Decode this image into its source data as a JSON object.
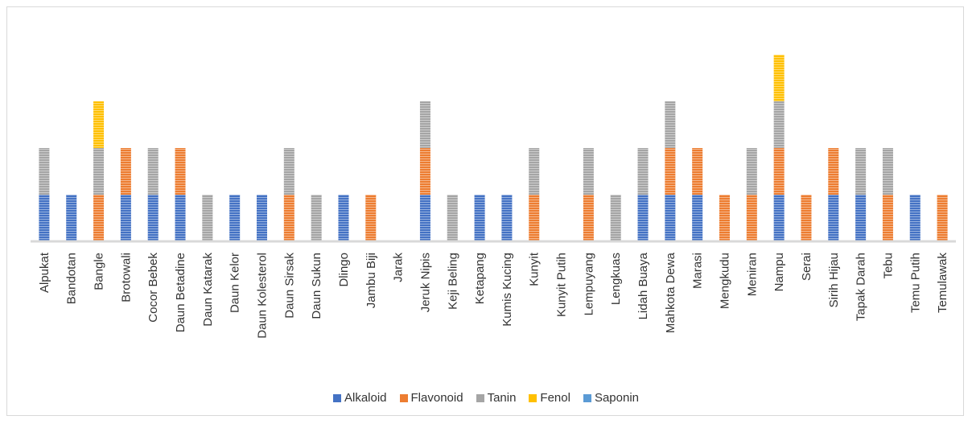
{
  "chart_data": {
    "type": "bar",
    "stacked": true,
    "title": "",
    "xlabel": "",
    "ylabel": "",
    "ylim": [
      0,
      4
    ],
    "grid": false,
    "legend_position": "bottom",
    "categories": [
      "Alpukat",
      "Bandotan",
      "Bangle",
      "Brotowali",
      "Cocor Bebek",
      "Daun Betadine",
      "Daun Katarak",
      "Daun Kelor",
      "Daun Kolesterol",
      "Daun Sirsak",
      "Daun Sukun",
      "Dlingo",
      "Jambu Biji",
      "Jarak",
      "Jeruk Nipis",
      "Keji Beling",
      "Ketapang",
      "Kumis Kucing",
      "Kunyit",
      "Kunyit Putih",
      "Lempuyang",
      "Lengkuas",
      "Lidah Buaya",
      "Mahkota Dewa",
      "Marasi",
      "Mengkudu",
      "Meniran",
      "Nampu",
      "Serai",
      "Sirih Hijau",
      "Tapak Darah",
      "Tebu",
      "Temu Putih",
      "Temulawak"
    ],
    "series": [
      {
        "name": "Alkaloid",
        "color": "#4472c4",
        "values": [
          1,
          1,
          0,
          1,
          1,
          1,
          0,
          1,
          1,
          0,
          0,
          1,
          0,
          0,
          1,
          0,
          1,
          1,
          0,
          0,
          0,
          0,
          1,
          1,
          1,
          0,
          0,
          1,
          0,
          1,
          1,
          0,
          1,
          0
        ]
      },
      {
        "name": "Flavonoid",
        "color": "#ed7d31",
        "values": [
          0,
          0,
          1,
          1,
          0,
          1,
          0,
          0,
          0,
          1,
          0,
          0,
          1,
          0,
          1,
          0,
          0,
          0,
          1,
          0,
          1,
          0,
          0,
          1,
          1,
          1,
          1,
          1,
          1,
          1,
          0,
          1,
          0,
          1
        ]
      },
      {
        "name": "Tanin",
        "color": "#a5a5a5",
        "values": [
          1,
          0,
          1,
          0,
          1,
          0,
          1,
          0,
          0,
          1,
          1,
          0,
          0,
          0,
          1,
          1,
          0,
          0,
          1,
          0,
          1,
          1,
          1,
          1,
          0,
          0,
          1,
          1,
          0,
          0,
          1,
          1,
          0,
          0
        ]
      },
      {
        "name": "Fenol",
        "color": "#ffc000",
        "values": [
          0,
          0,
          1,
          0,
          0,
          0,
          0,
          0,
          0,
          0,
          0,
          0,
          0,
          0,
          0,
          0,
          0,
          0,
          0,
          0,
          0,
          0,
          0,
          0,
          0,
          0,
          0,
          1,
          0,
          0,
          0,
          0,
          0,
          0
        ]
      },
      {
        "name": "Saponin",
        "color": "#5b9bd5",
        "values": [
          0,
          0,
          0,
          0,
          0,
          0,
          0,
          0,
          0,
          0,
          0,
          0,
          0,
          0,
          0,
          0,
          0,
          0,
          0,
          0,
          0,
          0,
          0,
          0,
          0,
          0,
          0,
          0,
          0,
          0,
          0,
          0,
          0,
          0
        ]
      }
    ]
  }
}
